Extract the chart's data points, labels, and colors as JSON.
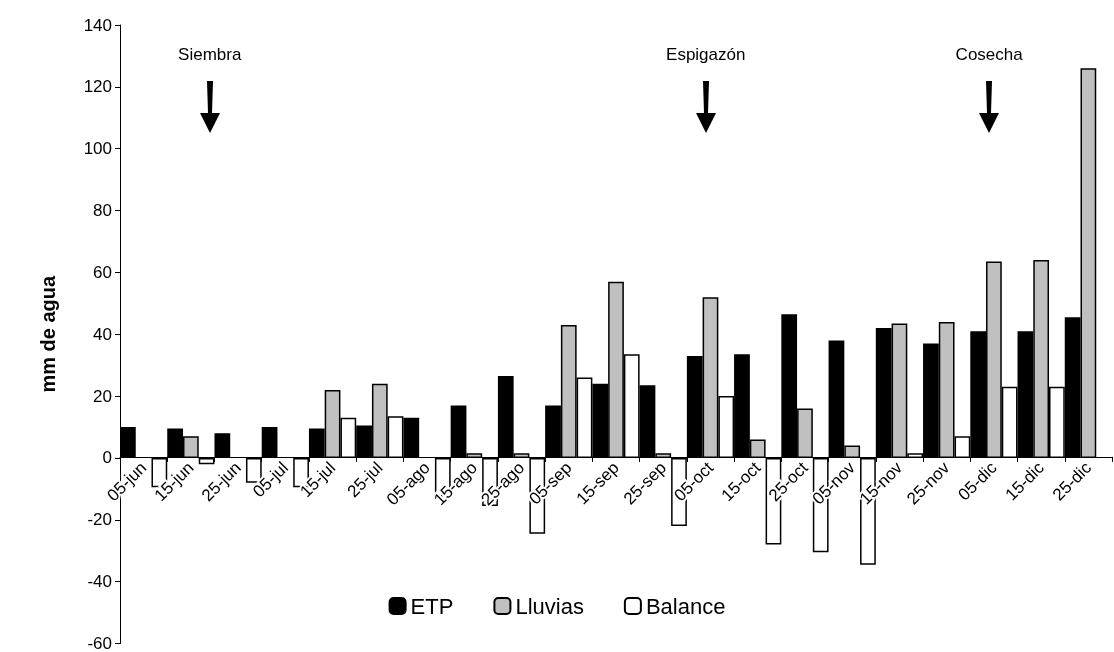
{
  "chart_data": {
    "type": "bar",
    "ylabel": "mm de agua",
    "categories": [
      "05-jun",
      "15-jun",
      "25-jun",
      "05-jul",
      "15-jul",
      "25-jul",
      "05-ago",
      "15-ago",
      "25-ago",
      "05-sep",
      "15-sep",
      "25-sep",
      "05-oct",
      "15-oct",
      "25-oct",
      "05-nov",
      "15-nov",
      "25-nov",
      "05-dic",
      "15-dic",
      "25-dic"
    ],
    "series": [
      {
        "name": "ETP",
        "color": "#000000",
        "values": [
          10,
          9.5,
          8,
          10,
          9.5,
          10.5,
          13,
          17,
          26.5,
          17,
          24,
          23.5,
          33,
          33.5,
          46.5,
          38,
          42,
          37,
          41,
          41,
          45.5
        ]
      },
      {
        "name": "Lluvias",
        "color": "#c0c0c0",
        "values": [
          null,
          7,
          null,
          null,
          22,
          24,
          null,
          1.5,
          1.5,
          43,
          57,
          1.5,
          52,
          6,
          16,
          4,
          43.5,
          44,
          63.5,
          64,
          126
        ]
      },
      {
        "name": "Balance",
        "color": "#ffffff",
        "values": [
          -9.5,
          -2,
          -8,
          -9.5,
          13,
          13.5,
          -12.5,
          -15.5,
          -24.5,
          26,
          33.5,
          -22,
          20,
          -28,
          -30.5,
          -34.5,
          1.5,
          7,
          23,
          23,
          null
        ]
      }
    ],
    "ylim": [
      -60,
      140
    ],
    "yticks": [
      -60,
      -40,
      -20,
      0,
      20,
      40,
      60,
      80,
      100,
      120,
      140
    ],
    "grid": false,
    "legend": "bottom",
    "annotations": [
      "Siembra",
      "Espigazón",
      "Cosecha"
    ]
  }
}
